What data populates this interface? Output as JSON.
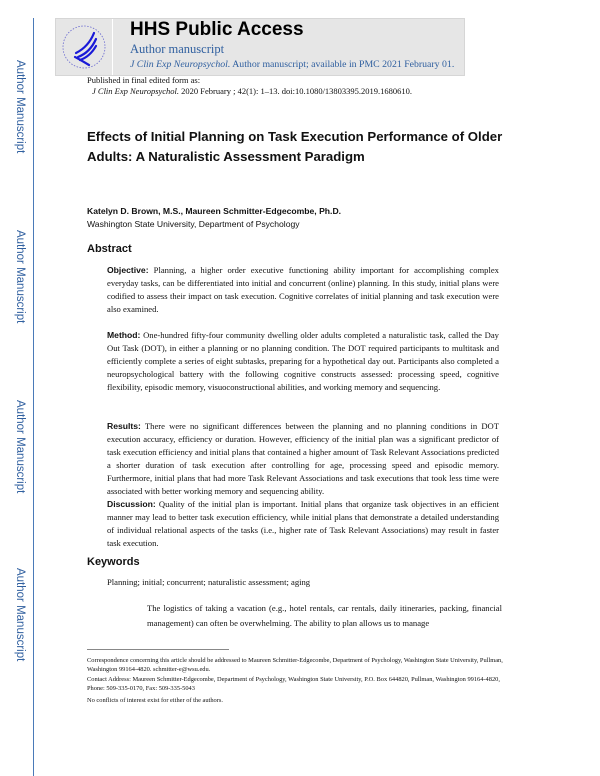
{
  "sidebar": {
    "label": "Author Manuscript"
  },
  "header": {
    "title": "HHS Public Access",
    "subtitle": "Author manuscript",
    "journal": "J Clin Exp Neuropsychol.",
    "availability": "Author manuscript; available in PMC 2021 February 01.",
    "logo": "hhs-eagle-logo"
  },
  "published": {
    "label": "Published in final edited form as:",
    "journal": "J Clin Exp Neuropsychol.",
    "citation": "2020 February ; 42(1): 1–13. doi:10.1080/13803395.2019.1680610."
  },
  "article": {
    "title": "Effects of Initial Planning on Task Execution Performance of Older Adults: A Naturalistic Assessment Paradigm",
    "authors": "Katelyn D. Brown, M.S., Maureen Schmitter-Edgecombe, Ph.D.",
    "affiliation": "Washington State University, Department of Psychology"
  },
  "abstract": {
    "heading": "Abstract",
    "sections": [
      {
        "label": "Objective:",
        "text": "Planning, a higher order executive functioning ability important for accomplishing complex everyday tasks, can be differentiated into initial and concurrent (online) planning. In this study, initial plans were codified to assess their impact on task execution. Cognitive correlates of initial planning and task execution were also examined."
      },
      {
        "label": "Method:",
        "text": "One-hundred fifty-four community dwelling older adults completed a naturalistic task, called the Day Out Task (DOT), in either a planning or no planning condition. The DOT required participants to multitask and efficiently complete a series of eight subtasks, preparing for a hypothetical day out. Participants also completed a neuropsychological battery with the following cognitive constructs assessed: processing speed, cognitive flexibility, episodic memory, visuoconstructional abilities, and working memory and sequencing."
      },
      {
        "label": "Results:",
        "text": "There were no significant differences between the planning and no planning conditions in DOT execution accuracy, efficiency or duration. However, efficiency of the initial plan was a significant predictor of task execution efficiency and initial plans that contained a higher amount of Task Relevant Associations predicted a shorter duration of task execution after controlling for age, processing speed and episodic memory. Furthermore, initial plans that had more Task Relevant Associations and task executions that took less time were associated with better working memory and sequencing ability."
      },
      {
        "label": "Discussion:",
        "text": "Quality of the initial plan is important. Initial plans that organize task objectives in an efficient manner may lead to better task execution efficiency, while initial plans that demonstrate a detailed understanding of individual relational aspects of the tasks (i.e., higher rate of Task Relevant Associations) may result in faster task execution."
      }
    ]
  },
  "keywords": {
    "heading": "Keywords",
    "text": "Planning; initial; concurrent; naturalistic assessment; aging"
  },
  "body": {
    "text": "The logistics of taking a vacation (e.g., hotel rentals, car rentals, daily itineraries, packing, financial management) can often be overwhelming. The ability to plan allows us to manage"
  },
  "footnotes": {
    "correspondence": "Correspondence concerning this article should be addressed to Maureen Schmitter-Edgecombe, Department of Psychology, Washington State University, Pullman, Washington 99164-4820. schmitter-e@wsu.edu.",
    "contact": "Contact Address: Maureen Schmitter-Edgecombe, Department of Psychology, Washington State University, P.O. Box 644820, Pullman, Washington 99164-4820, Phone: 509-335-0170, Fax: 509-335-5043",
    "conflicts": "No conflicts of interest exist for either of the authors."
  }
}
